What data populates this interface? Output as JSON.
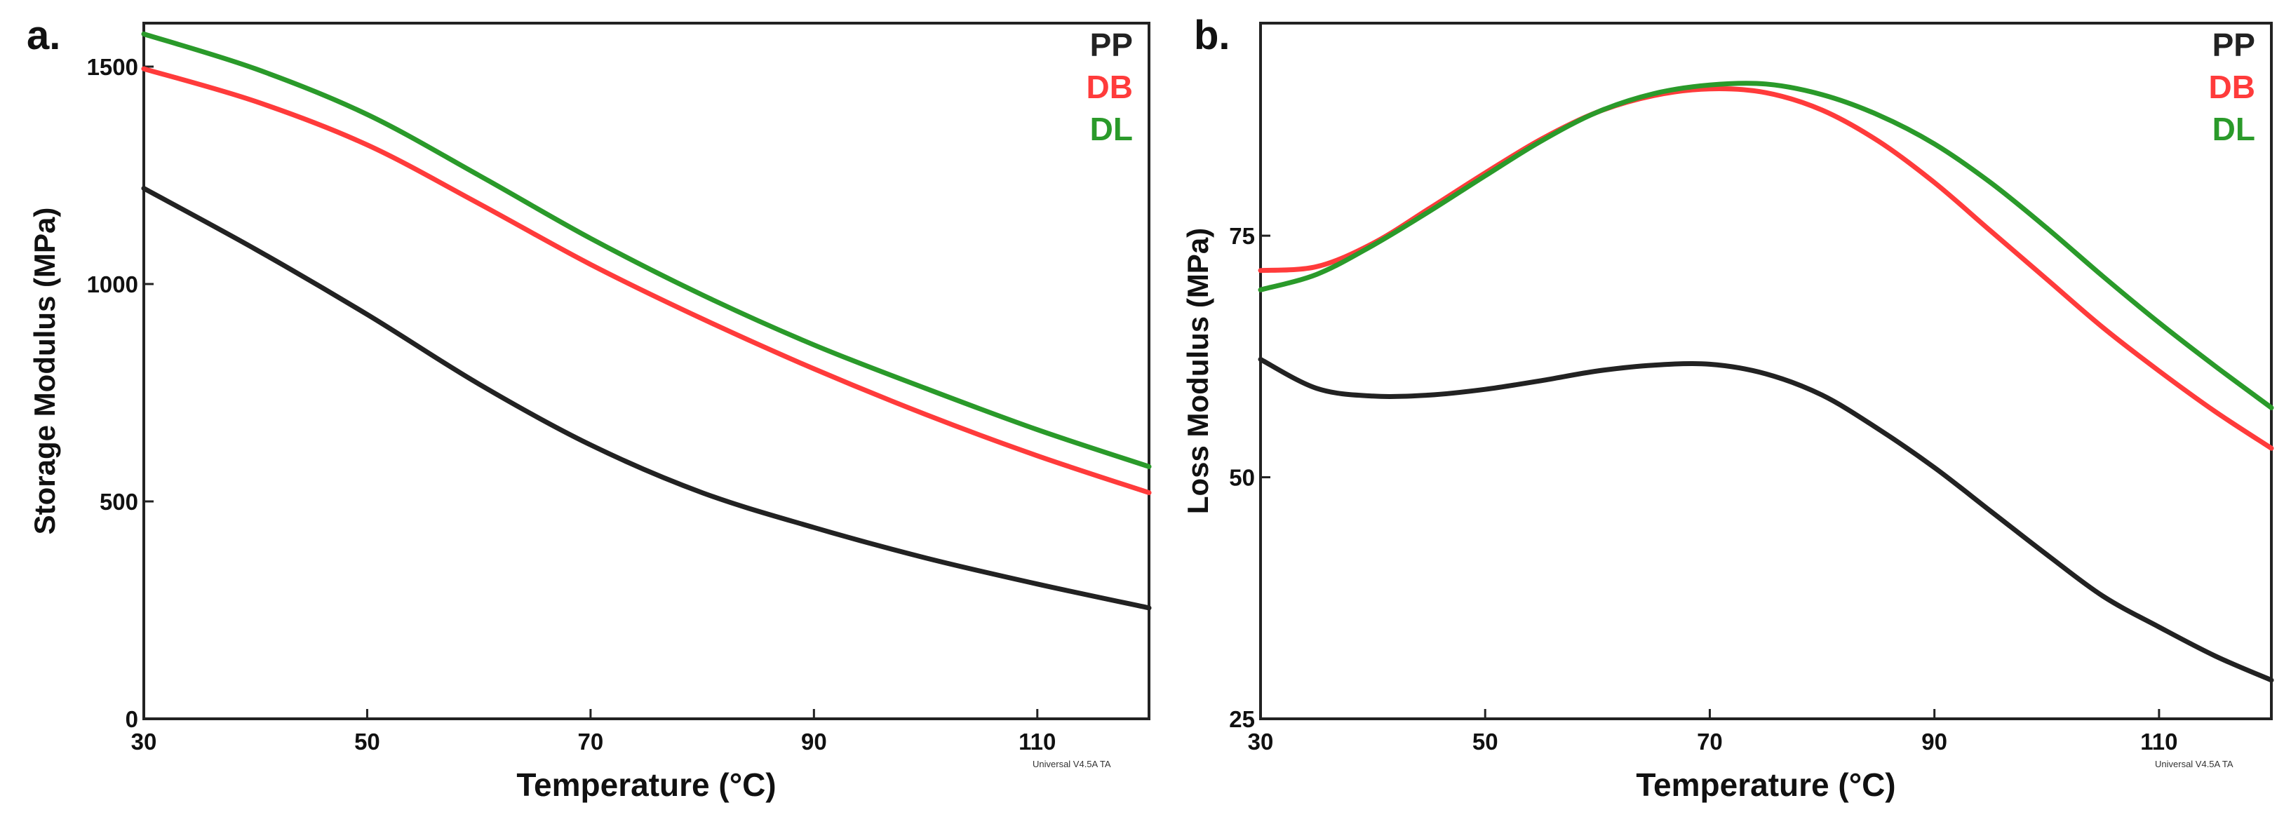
{
  "chart_data": [
    {
      "type": "line",
      "panel_label": "a.",
      "title": "",
      "xlabel": "Temperature (°C)",
      "ylabel": "Storage Modulus (MPa)",
      "xlim": [
        30,
        120
      ],
      "ylim": [
        0,
        1600
      ],
      "xticks": [
        30,
        50,
        70,
        90,
        110
      ],
      "yticks": [
        0,
        500,
        1000,
        1500
      ],
      "xtick_labels": [
        "30",
        "50",
        "70",
        "90",
        "110"
      ],
      "ytick_labels": [
        "0",
        "500",
        "1000",
        "1500"
      ],
      "legend_position": "top-right",
      "watermark": "Universal V4.5A TA",
      "series": [
        {
          "name": "PP",
          "color": "#222222",
          "x": [
            30,
            40,
            50,
            60,
            70,
            80,
            90,
            100,
            110,
            120
          ],
          "y": [
            1220,
            1080,
            930,
            770,
            630,
            520,
            440,
            370,
            310,
            255
          ]
        },
        {
          "name": "DB",
          "color": "#ff3b3b",
          "x": [
            30,
            40,
            50,
            60,
            70,
            80,
            90,
            100,
            110,
            120
          ],
          "y": [
            1495,
            1420,
            1320,
            1185,
            1045,
            920,
            805,
            700,
            605,
            520
          ]
        },
        {
          "name": "DL",
          "color": "#2a9a2a",
          "x": [
            30,
            40,
            50,
            60,
            70,
            80,
            90,
            100,
            110,
            120
          ],
          "y": [
            1575,
            1495,
            1390,
            1250,
            1105,
            975,
            860,
            760,
            665,
            580
          ]
        }
      ]
    },
    {
      "type": "line",
      "panel_label": "b.",
      "title": "",
      "xlabel": "Temperature (°C)",
      "ylabel": "Loss Modulus (MPa)",
      "xlim": [
        30,
        120
      ],
      "ylim": [
        25,
        97
      ],
      "xticks": [
        30,
        50,
        70,
        90,
        110
      ],
      "yticks": [
        25,
        50,
        75
      ],
      "xtick_labels": [
        "30",
        "50",
        "70",
        "90",
        "110"
      ],
      "ytick_labels": [
        "25",
        "50",
        "75"
      ],
      "legend_position": "top-right",
      "watermark": "Universal V4.5A TA",
      "series": [
        {
          "name": "PP",
          "color": "#222222",
          "x": [
            30,
            35,
            40,
            45,
            50,
            55,
            60,
            65,
            70,
            75,
            80,
            85,
            90,
            95,
            100,
            105,
            110,
            115,
            120
          ],
          "y": [
            62.2,
            59.2,
            58.4,
            58.5,
            59.1,
            60.0,
            61.0,
            61.6,
            61.7,
            60.7,
            58.5,
            55.0,
            51.0,
            46.5,
            42.0,
            37.7,
            34.5,
            31.5,
            29.0
          ]
        },
        {
          "name": "DB",
          "color": "#ff3b3b",
          "x": [
            30,
            35,
            40,
            45,
            50,
            55,
            60,
            65,
            70,
            75,
            80,
            85,
            90,
            95,
            100,
            105,
            110,
            115,
            120
          ],
          "y": [
            71.4,
            71.8,
            74.2,
            77.8,
            81.5,
            85.0,
            87.8,
            89.5,
            90.2,
            89.8,
            88.0,
            84.8,
            80.5,
            75.5,
            70.5,
            65.5,
            61.0,
            56.8,
            53.0
          ]
        },
        {
          "name": "DL",
          "color": "#2a9a2a",
          "x": [
            30,
            35,
            40,
            45,
            50,
            55,
            60,
            65,
            70,
            75,
            80,
            85,
            90,
            95,
            100,
            105,
            110,
            115,
            120
          ],
          "y": [
            69.4,
            71.0,
            74.0,
            77.5,
            81.2,
            84.8,
            87.8,
            89.7,
            90.6,
            90.7,
            89.6,
            87.5,
            84.5,
            80.5,
            75.8,
            70.8,
            66.0,
            61.5,
            57.2
          ]
        }
      ]
    }
  ]
}
